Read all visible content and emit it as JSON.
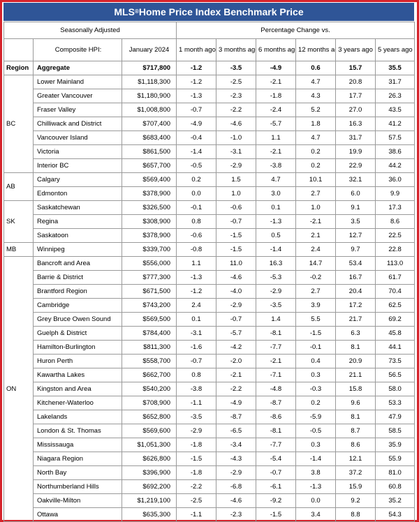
{
  "title_main": "MLS",
  "title_sup": "®",
  "title_rest": " Home Price Index Benchmark Price",
  "header": {
    "seasonally_adjusted": "Seasonally Adjusted",
    "pct_change": "Percentage Change vs.",
    "composite_hpi": "Composite HPI:",
    "month_col": "January 2024",
    "periods": [
      "1 month ago",
      "3 months ago",
      "6 months ago",
      "12 months ago",
      "3 years ago",
      "5 years ago"
    ]
  },
  "aggregate": {
    "region": "Region",
    "name": "Aggregate",
    "price": "$717,800",
    "values": [
      "-1.2",
      "-3.5",
      "-4.9",
      "0.6",
      "15.7",
      "35.5"
    ]
  },
  "groups": [
    {
      "region": "BC",
      "rows": [
        {
          "name": "Lower Mainland",
          "price": "$1,118,300",
          "values": [
            "-1.2",
            "-2.5",
            "-2.1",
            "4.7",
            "20.8",
            "31.7"
          ]
        },
        {
          "name": "Greater Vancouver",
          "price": "$1,180,900",
          "values": [
            "-1.3",
            "-2.3",
            "-1.8",
            "4.3",
            "17.7",
            "26.3"
          ]
        },
        {
          "name": "Fraser Valley",
          "price": "$1,008,800",
          "values": [
            "-0.7",
            "-2.2",
            "-2.4",
            "5.2",
            "27.0",
            "43.5"
          ]
        },
        {
          "name": "Chilliwack and District",
          "price": "$707,400",
          "values": [
            "-4.9",
            "-4.6",
            "-5.7",
            "1.8",
            "16.3",
            "41.2"
          ]
        },
        {
          "name": "Vancouver Island",
          "price": "$683,400",
          "values": [
            "-0.4",
            "-1.0",
            "1.1",
            "4.7",
            "31.7",
            "57.5"
          ]
        },
        {
          "name": "Victoria",
          "price": "$861,500",
          "values": [
            "-1.4",
            "-3.1",
            "-2.1",
            "0.2",
            "19.9",
            "38.6"
          ]
        },
        {
          "name": "Interior BC",
          "price": "$657,700",
          "values": [
            "-0.5",
            "-2.9",
            "-3.8",
            "0.2",
            "22.9",
            "44.2"
          ]
        }
      ]
    },
    {
      "region": "AB",
      "rows": [
        {
          "name": "Calgary",
          "price": "$569,400",
          "values": [
            "0.2",
            "1.5",
            "4.7",
            "10.1",
            "32.1",
            "36.0"
          ]
        },
        {
          "name": "Edmonton",
          "price": "$378,900",
          "values": [
            "0.0",
            "1.0",
            "3.0",
            "2.7",
            "6.0",
            "9.9"
          ]
        }
      ]
    },
    {
      "region": "SK",
      "rows": [
        {
          "name": "Saskatchewan",
          "price": "$326,500",
          "values": [
            "-0.1",
            "-0.6",
            "0.1",
            "1.0",
            "9.1",
            "17.3"
          ]
        },
        {
          "name": "Regina",
          "price": "$308,900",
          "values": [
            "0.8",
            "-0.7",
            "-1.3",
            "-2.1",
            "3.5",
            "8.6"
          ]
        },
        {
          "name": "Saskatoon",
          "price": "$378,900",
          "values": [
            "-0.6",
            "-1.5",
            "0.5",
            "2.1",
            "12.7",
            "22.5"
          ]
        }
      ]
    },
    {
      "region": "MB",
      "rows": [
        {
          "name": "Winnipeg",
          "price": "$339,700",
          "values": [
            "-0.8",
            "-1.5",
            "-1.4",
            "2.4",
            "9.7",
            "22.8"
          ]
        }
      ]
    },
    {
      "region": "ON",
      "rows": [
        {
          "name": "Bancroft and Area",
          "price": "$556,000",
          "values": [
            "1.1",
            "11.0",
            "16.3",
            "14.7",
            "53.4",
            "113.0"
          ]
        },
        {
          "name": "Barrie & District",
          "price": "$777,300",
          "values": [
            "-1.3",
            "-4.6",
            "-5.3",
            "-0.2",
            "16.7",
            "61.7"
          ]
        },
        {
          "name": "Brantford Region",
          "price": "$671,500",
          "values": [
            "-1.2",
            "-4.0",
            "-2.9",
            "2.7",
            "20.4",
            "70.4"
          ]
        },
        {
          "name": "Cambridge",
          "price": "$743,200",
          "values": [
            "2.4",
            "-2.9",
            "-3.5",
            "3.9",
            "17.2",
            "62.5"
          ]
        },
        {
          "name": "Grey Bruce Owen Sound",
          "price": "$569,500",
          "values": [
            "0.1",
            "-0.7",
            "1.4",
            "5.5",
            "21.7",
            "69.2"
          ]
        },
        {
          "name": "Guelph & District",
          "price": "$784,400",
          "values": [
            "-3.1",
            "-5.7",
            "-8.1",
            "-1.5",
            "6.3",
            "45.8"
          ]
        },
        {
          "name": "Hamilton-Burlington",
          "price": "$811,300",
          "values": [
            "-1.6",
            "-4.2",
            "-7.7",
            "-0.1",
            "8.1",
            "44.1"
          ]
        },
        {
          "name": "Huron Perth",
          "price": "$558,700",
          "values": [
            "-0.7",
            "-2.0",
            "-2.1",
            "0.4",
            "20.9",
            "73.5"
          ]
        },
        {
          "name": "Kawartha Lakes",
          "price": "$662,700",
          "values": [
            "0.8",
            "-2.1",
            "-7.1",
            "0.3",
            "21.1",
            "56.5"
          ]
        },
        {
          "name": "Kingston and Area",
          "price": "$540,200",
          "values": [
            "-3.8",
            "-2.2",
            "-4.8",
            "-0.3",
            "15.8",
            "58.0"
          ]
        },
        {
          "name": "Kitchener-Waterloo",
          "price": "$708,900",
          "values": [
            "-1.1",
            "-4.9",
            "-8.7",
            "0.2",
            "9.6",
            "53.3"
          ]
        },
        {
          "name": "Lakelands",
          "price": "$652,800",
          "values": [
            "-3.5",
            "-8.7",
            "-8.6",
            "-5.9",
            "8.1",
            "47.9"
          ]
        },
        {
          "name": "London & St. Thomas",
          "price": "$569,600",
          "values": [
            "-2.9",
            "-6.5",
            "-8.1",
            "-0.5",
            "8.7",
            "58.5"
          ]
        },
        {
          "name": "Mississauga",
          "price": "$1,051,300",
          "values": [
            "-1.8",
            "-3.4",
            "-7.7",
            "0.3",
            "8.6",
            "35.9"
          ]
        },
        {
          "name": "Niagara Region",
          "price": "$626,800",
          "values": [
            "-1.5",
            "-4.3",
            "-5.4",
            "-1.4",
            "12.1",
            "55.9"
          ]
        },
        {
          "name": "North Bay",
          "price": "$396,900",
          "values": [
            "-1.8",
            "-2.9",
            "-0.7",
            "3.8",
            "37.2",
            "81.0"
          ]
        },
        {
          "name": "Northumberland Hills",
          "price": "$692,200",
          "values": [
            "-2.2",
            "-6.8",
            "-6.1",
            "-1.3",
            "15.9",
            "60.8"
          ]
        },
        {
          "name": "Oakville-Milton",
          "price": "$1,219,100",
          "values": [
            "-2.5",
            "-4.6",
            "-9.2",
            "0.0",
            "9.2",
            "35.2"
          ]
        },
        {
          "name": "Ottawa",
          "price": "$635,300",
          "values": [
            "-1.1",
            "-2.3",
            "-1.5",
            "3.4",
            "8.8",
            "54.3"
          ]
        }
      ]
    }
  ]
}
